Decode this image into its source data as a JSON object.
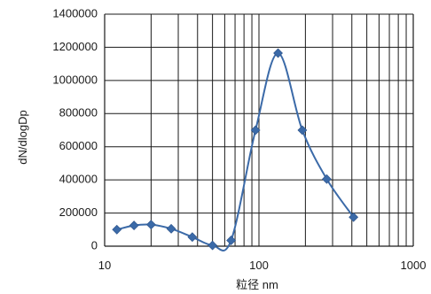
{
  "chart_data": {
    "type": "line",
    "xscale": "log",
    "xlabel": "粒径 nm",
    "ylabel": "dN/dlogDp",
    "xlim": [
      10,
      1000
    ],
    "ylim": [
      0,
      1400000
    ],
    "x_ticks": [
      "10",
      "100",
      "1000"
    ],
    "y_ticks": [
      "0",
      "200000",
      "400000",
      "600000",
      "800000",
      "1000000",
      "1200000",
      "1400000"
    ],
    "grid": true,
    "series": [
      {
        "color": "#3b6aa8",
        "marker": "diamond",
        "smooth": true,
        "x": [
          12,
          15.5,
          20,
          27,
          37,
          50,
          66,
          95,
          133,
          191,
          275,
          410
        ],
        "y": [
          100000,
          125000,
          130000,
          105000,
          55000,
          5000,
          35000,
          700000,
          1165000,
          700000,
          405000,
          175000
        ]
      }
    ]
  }
}
